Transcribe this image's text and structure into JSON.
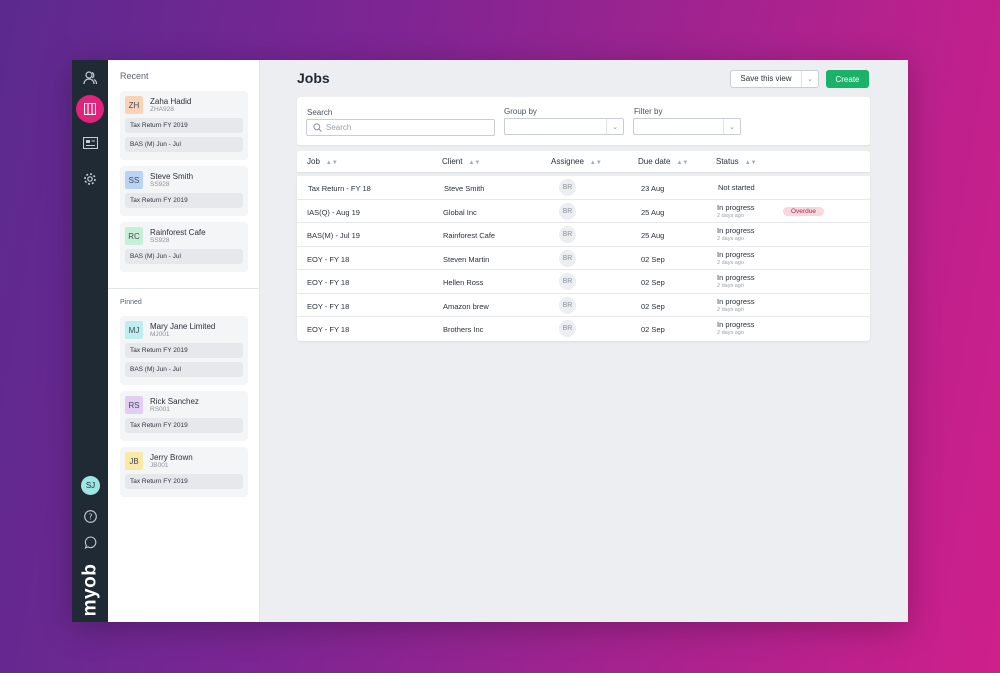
{
  "rail": {
    "user_initials": "SJ",
    "logo": "myob",
    "icons": [
      "contacts-icon",
      "jobs-icon",
      "cards-icon",
      "settings-icon",
      "help-icon",
      "chat-icon"
    ]
  },
  "panel": {
    "recent_title": "Recent",
    "pinned_title": "Pinned",
    "recent": [
      {
        "initials": "ZH",
        "name": "Zaha Hadid",
        "code": "ZHA928",
        "color": "#f9d3b8",
        "jobs": [
          "Tax Return FY 2019",
          "BAS (M) Jun - Jul"
        ]
      },
      {
        "initials": "SS",
        "name": "Steve Smith",
        "code": "SS928",
        "color": "#b9d3f5",
        "jobs": [
          "Tax Return FY 2019"
        ]
      },
      {
        "initials": "RC",
        "name": "Rainforest Cafe",
        "code": "SS928",
        "color": "#c7efd6",
        "jobs": [
          "BAS (M) Jun - Jul"
        ]
      }
    ],
    "pinned": [
      {
        "initials": "MJ",
        "name": "Mary Jane Limited",
        "code": "MJ001",
        "color": "#bfeef0",
        "jobs": [
          "Tax Return FY 2019",
          "BAS (M) Jun - Jul"
        ]
      },
      {
        "initials": "RS",
        "name": "Rick Sanchez",
        "code": "RS001",
        "color": "#e2cdf3",
        "jobs": [
          "Tax Return FY 2019"
        ]
      },
      {
        "initials": "JB",
        "name": "Jerry Brown",
        "code": "JB001",
        "color": "#f9eaa8",
        "jobs": [
          "Tax Return FY 2019"
        ]
      }
    ]
  },
  "main": {
    "title": "Jobs",
    "save_view_label": "Save this view",
    "create_label": "Create",
    "filters": {
      "search_label": "Search",
      "search_placeholder": "Search",
      "group_label": "Group by",
      "filter_label": "Filter by"
    },
    "columns": [
      "Job",
      "Client",
      "Assignee",
      "Due date",
      "Status"
    ],
    "rows": [
      {
        "job": "Tax Return - FY 18",
        "client": "Steve Smith",
        "assignee": "BR",
        "due": "23 Aug",
        "status": "Not started",
        "ago": "",
        "badge": ""
      },
      {
        "job": "IAS(Q) - Aug 19",
        "client": "Global Inc",
        "assignee": "BR",
        "due": "25 Aug",
        "status": "In progress",
        "ago": "2 days ago",
        "badge": "Overdue"
      },
      {
        "job": "BAS(M) - Jul 19",
        "client": "Rainforest Cafe",
        "assignee": "BR",
        "due": "25 Aug",
        "status": "In progress",
        "ago": "2 days ago",
        "badge": ""
      },
      {
        "job": "EOY - FY 18",
        "client": "Steven Martin",
        "assignee": "BR",
        "due": "02 Sep",
        "status": "In progress",
        "ago": "2 days ago",
        "badge": ""
      },
      {
        "job": "EOY - FY 18",
        "client": "Hellen Ross",
        "assignee": "BR",
        "due": "02 Sep",
        "status": "In progress",
        "ago": "2 days ago",
        "badge": ""
      },
      {
        "job": "EOY - FY 18",
        "client": "Amazon brew",
        "assignee": "BR",
        "due": "02 Sep",
        "status": "In progress",
        "ago": "2 days ago",
        "badge": ""
      },
      {
        "job": "EOY - FY 18",
        "client": "Brothers Inc",
        "assignee": "BR",
        "due": "02 Sep",
        "status": "In progress",
        "ago": "2 days ago",
        "badge": ""
      }
    ]
  },
  "colors": {
    "accent": "#e0237d",
    "create": "#19b268",
    "rail": "#1f2a35",
    "overdue_bg": "#f8d7de",
    "overdue_text": "#b02a4a"
  }
}
